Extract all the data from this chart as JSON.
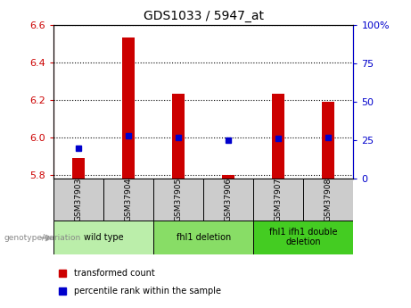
{
  "title": "GDS1033 / 5947_at",
  "samples": [
    "GSM37903",
    "GSM37904",
    "GSM37905",
    "GSM37906",
    "GSM37907",
    "GSM37908"
  ],
  "transformed_counts": [
    5.89,
    6.53,
    6.23,
    5.8,
    6.23,
    6.19
  ],
  "percentile_ranks": [
    20,
    28,
    27,
    25,
    26,
    27
  ],
  "ylim_left": [
    5.78,
    6.6
  ],
  "ylim_right": [
    0,
    100
  ],
  "yticks_left": [
    5.8,
    6.0,
    6.2,
    6.4,
    6.6
  ],
  "yticks_right": [
    0,
    25,
    50,
    75,
    100
  ],
  "ytick_labels_right": [
    "0",
    "25",
    "50",
    "75",
    "100%"
  ],
  "bar_color": "#cc0000",
  "dot_color": "#0000cc",
  "bar_bottom": 5.78,
  "groups": [
    {
      "label": "wild type",
      "samples": [
        0,
        1
      ],
      "color": "#bbeeaa"
    },
    {
      "label": "fhl1 deletion",
      "samples": [
        2,
        3
      ],
      "color": "#88dd66"
    },
    {
      "label": "fhl1 ifh1 double\ndeletion",
      "samples": [
        4,
        5
      ],
      "color": "#44cc22"
    }
  ],
  "group_bg_color": "#cccccc",
  "legend_red_label": "transformed count",
  "legend_blue_label": "percentile rank within the sample",
  "genotype_label": "genotype/variation",
  "dotted_line_color": "#000000",
  "background_color": "#ffffff",
  "plot_bg_color": "#ffffff",
  "tick_label_color_left": "#cc0000",
  "tick_label_color_right": "#0000cc"
}
